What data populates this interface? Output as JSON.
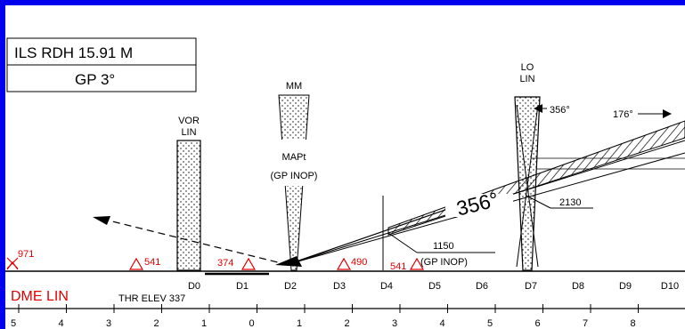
{
  "colors": {
    "border": "#0000ee",
    "background": "#ffffff",
    "ink": "#000000",
    "obstacle": "#e00000"
  },
  "info_box": {
    "rdh": "ILS RDH  15.91  M",
    "gp": "GP  3°"
  },
  "beacons": {
    "vor": [
      "VOR",
      "LIN"
    ],
    "mm": "MM",
    "lo": [
      "LO",
      "LIN"
    ]
  },
  "mapt": [
    "MAPt",
    "(GP  INOP)"
  ],
  "courses": {
    "final": "356°",
    "outbound": "176°",
    "inbound_small": "356°"
  },
  "altitudes": {
    "a2130": "2130",
    "a1150": "1150",
    "a1150_note": "(GP  INOP)"
  },
  "obstacles": [
    {
      "label": "971",
      "dist": -5.1,
      "symbol": "cross"
    },
    {
      "label": "541",
      "dist": 2.6,
      "symbol": "triangle"
    },
    {
      "label": "374",
      "dist": -0.6,
      "symbol": "triangle"
    },
    {
      "label": "490",
      "dist": 1.2,
      "symbol": "triangle"
    },
    {
      "label": "541",
      "dist": 3.2,
      "symbol": "triangle"
    }
  ],
  "dme_labels": [
    "D0",
    "D1",
    "D2",
    "D3",
    "D4",
    "D5",
    "D6",
    "D7",
    "D8",
    "D9",
    "D10"
  ],
  "dme_title": "DME  LIN",
  "threshold": "THR  ELEV  337",
  "scale": [
    "5",
    "4",
    "3",
    "2",
    "1",
    "0",
    "1",
    "2",
    "3",
    "4",
    "5",
    "6",
    "7",
    "8"
  ]
}
